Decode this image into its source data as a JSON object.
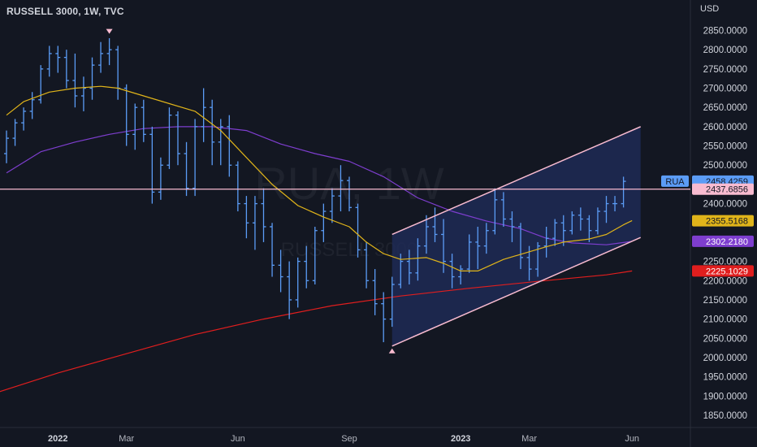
{
  "header": {
    "title": "RUSSELL 3000, 1W, TVC",
    "currency": "USD"
  },
  "watermark": {
    "symbol": "RUA, 1W",
    "name": "RUSSELL 3000"
  },
  "chart_data": {
    "type": "ohlc",
    "symbol_label": "RUA",
    "y_ticks": [
      "2850.0000",
      "2800.0000",
      "2750.0000",
      "2700.0000",
      "2650.0000",
      "2600.0000",
      "2550.0000",
      "2500.0000",
      "2450.0000",
      "2400.0000",
      "2350.0000",
      "2300.0000",
      "2250.0000",
      "2200.0000",
      "2150.0000",
      "2100.0000",
      "2050.0000",
      "2000.0000",
      "1950.0000",
      "1900.0000",
      "1850.0000"
    ],
    "ylim": [
      1810,
      2880
    ],
    "x_labels": [
      {
        "label": "2022",
        "bold": true,
        "at": 6
      },
      {
        "label": "Mar",
        "bold": false,
        "at": 14
      },
      {
        "label": "Jun",
        "bold": false,
        "at": 27
      },
      {
        "label": "Sep",
        "bold": false,
        "at": 40
      },
      {
        "label": "2023",
        "bold": true,
        "at": 53
      },
      {
        "label": "Mar",
        "bold": false,
        "at": 61
      },
      {
        "label": "Jun",
        "bold": false,
        "at": 73
      }
    ],
    "bars": [
      [
        2530,
        2590,
        2505,
        2570
      ],
      [
        2570,
        2620,
        2550,
        2610
      ],
      [
        2610,
        2650,
        2590,
        2640
      ],
      [
        2640,
        2690,
        2620,
        2670
      ],
      [
        2670,
        2760,
        2660,
        2750
      ],
      [
        2750,
        2810,
        2730,
        2790
      ],
      [
        2790,
        2810,
        2740,
        2780
      ],
      [
        2780,
        2800,
        2700,
        2720
      ],
      [
        2720,
        2790,
        2650,
        2680
      ],
      [
        2680,
        2730,
        2640,
        2700
      ],
      [
        2700,
        2780,
        2670,
        2760
      ],
      [
        2760,
        2820,
        2740,
        2790
      ],
      [
        2790,
        2830,
        2760,
        2800
      ],
      [
        2800,
        2810,
        2670,
        2700
      ],
      [
        2700,
        2710,
        2550,
        2580
      ],
      [
        2580,
        2660,
        2540,
        2650
      ],
      [
        2650,
        2670,
        2560,
        2580
      ],
      [
        2580,
        2600,
        2400,
        2430
      ],
      [
        2430,
        2520,
        2410,
        2500
      ],
      [
        2500,
        2650,
        2490,
        2630
      ],
      [
        2630,
        2640,
        2500,
        2530
      ],
      [
        2530,
        2560,
        2420,
        2440
      ],
      [
        2440,
        2620,
        2420,
        2600
      ],
      [
        2600,
        2700,
        2560,
        2650
      ],
      [
        2650,
        2670,
        2500,
        2560
      ],
      [
        2560,
        2620,
        2500,
        2600
      ],
      [
        2600,
        2630,
        2470,
        2500
      ],
      [
        2500,
        2510,
        2380,
        2400
      ],
      [
        2400,
        2420,
        2310,
        2350
      ],
      [
        2350,
        2420,
        2280,
        2400
      ],
      [
        2400,
        2440,
        2300,
        2340
      ],
      [
        2340,
        2350,
        2210,
        2240
      ],
      [
        2240,
        2280,
        2170,
        2210
      ],
      [
        2210,
        2250,
        2100,
        2150
      ],
      [
        2150,
        2260,
        2130,
        2250
      ],
      [
        2250,
        2290,
        2180,
        2200
      ],
      [
        2200,
        2340,
        2190,
        2330
      ],
      [
        2330,
        2400,
        2300,
        2380
      ],
      [
        2380,
        2440,
        2350,
        2420
      ],
      [
        2420,
        2500,
        2380,
        2460
      ],
      [
        2460,
        2470,
        2380,
        2390
      ],
      [
        2390,
        2400,
        2260,
        2280
      ],
      [
        2280,
        2300,
        2180,
        2200
      ],
      [
        2200,
        2230,
        2110,
        2140
      ],
      [
        2140,
        2170,
        2040,
        2100
      ],
      [
        2100,
        2210,
        2080,
        2190
      ],
      [
        2190,
        2270,
        2180,
        2250
      ],
      [
        2250,
        2280,
        2190,
        2220
      ],
      [
        2220,
        2310,
        2200,
        2290
      ],
      [
        2290,
        2370,
        2270,
        2340
      ],
      [
        2340,
        2390,
        2300,
        2320
      ],
      [
        2320,
        2360,
        2220,
        2250
      ],
      [
        2250,
        2270,
        2180,
        2210
      ],
      [
        2210,
        2240,
        2190,
        2230
      ],
      [
        2230,
        2320,
        2220,
        2300
      ],
      [
        2300,
        2340,
        2230,
        2290
      ],
      [
        2290,
        2350,
        2270,
        2330
      ],
      [
        2330,
        2440,
        2320,
        2410
      ],
      [
        2410,
        2430,
        2340,
        2360
      ],
      [
        2360,
        2380,
        2300,
        2340
      ],
      [
        2340,
        2350,
        2230,
        2260
      ],
      [
        2260,
        2290,
        2200,
        2230
      ],
      [
        2230,
        2300,
        2210,
        2290
      ],
      [
        2290,
        2340,
        2260,
        2310
      ],
      [
        2310,
        2360,
        2290,
        2350
      ],
      [
        2350,
        2370,
        2290,
        2330
      ],
      [
        2330,
        2380,
        2320,
        2370
      ],
      [
        2370,
        2390,
        2330,
        2360
      ],
      [
        2360,
        2370,
        2300,
        2330
      ],
      [
        2330,
        2390,
        2320,
        2380
      ],
      [
        2380,
        2420,
        2350,
        2400
      ],
      [
        2400,
        2420,
        2380,
        2400
      ],
      [
        2400,
        2470,
        2390,
        2458
      ]
    ],
    "ma_fast": [
      [
        0,
        2630
      ],
      [
        2,
        2665
      ],
      [
        5,
        2690
      ],
      [
        8,
        2700
      ],
      [
        11,
        2705
      ],
      [
        13,
        2700
      ],
      [
        16,
        2680
      ],
      [
        19,
        2660
      ],
      [
        22,
        2640
      ],
      [
        25,
        2590
      ],
      [
        28,
        2520
      ],
      [
        31,
        2450
      ],
      [
        34,
        2395
      ],
      [
        37,
        2365
      ],
      [
        40,
        2340
      ],
      [
        42,
        2300
      ],
      [
        44,
        2270
      ],
      [
        46,
        2255
      ],
      [
        49,
        2260
      ],
      [
        51,
        2245
      ],
      [
        53,
        2225
      ],
      [
        55,
        2225
      ],
      [
        58,
        2255
      ],
      [
        61,
        2275
      ],
      [
        63,
        2288
      ],
      [
        65,
        2300
      ],
      [
        68,
        2308
      ],
      [
        70,
        2320
      ],
      [
        72,
        2345
      ],
      [
        73,
        2356
      ]
    ],
    "ma_slow": [
      [
        0,
        2480
      ],
      [
        4,
        2535
      ],
      [
        8,
        2560
      ],
      [
        12,
        2580
      ],
      [
        16,
        2595
      ],
      [
        20,
        2600
      ],
      [
        24,
        2600
      ],
      [
        28,
        2590
      ],
      [
        32,
        2555
      ],
      [
        36,
        2530
      ],
      [
        40,
        2510
      ],
      [
        44,
        2470
      ],
      [
        48,
        2415
      ],
      [
        52,
        2380
      ],
      [
        56,
        2355
      ],
      [
        60,
        2335
      ],
      [
        63,
        2310
      ],
      [
        66,
        2298
      ],
      [
        70,
        2293
      ],
      [
        73,
        2302
      ]
    ],
    "ma_long": [
      [
        -1,
        1910
      ],
      [
        6,
        1960
      ],
      [
        14,
        2010
      ],
      [
        22,
        2060
      ],
      [
        30,
        2100
      ],
      [
        38,
        2135
      ],
      [
        46,
        2160
      ],
      [
        54,
        2180
      ],
      [
        62,
        2198
      ],
      [
        70,
        2215
      ],
      [
        73,
        2225
      ]
    ],
    "channel": {
      "upper": [
        [
          45,
          2320
        ],
        [
          74,
          2600
        ]
      ],
      "lower": [
        [
          45,
          2030
        ],
        [
          74,
          2312
        ]
      ]
    },
    "hline": 2437.6856,
    "arrows": [
      {
        "at": 12,
        "price": 2835,
        "dir": "down"
      },
      {
        "at": 45,
        "price": 2030,
        "dir": "up"
      }
    ],
    "tags": [
      {
        "label": "RUA",
        "value": "2458.4259",
        "price": 2458.4259,
        "color": "#5b9cf6",
        "text": "#131722"
      },
      {
        "label": "",
        "value": "2437.6856",
        "price": 2437.6856,
        "color": "#f8bbd0",
        "text": "#131722"
      },
      {
        "label": "",
        "value": "2355.5168",
        "price": 2355.5168,
        "color": "#e0b41a",
        "text": "#131722"
      },
      {
        "label": "",
        "value": "2302.2180",
        "price": 2302.218,
        "color": "#7e3ecf",
        "text": "#ffffff"
      },
      {
        "label": "",
        "value": "2225.1029",
        "price": 2225.1029,
        "color": "#e01e1e",
        "text": "#ffffff"
      }
    ],
    "colors": {
      "bars": "#5b9cf6",
      "ma_fast": "#e0b41a",
      "ma_slow": "#7e3ecf",
      "ma_long": "#e01e1e",
      "channel_line": "#f8bbd0",
      "channel_fill": "#1e2a55",
      "hline": "#f8bbd0"
    }
  }
}
